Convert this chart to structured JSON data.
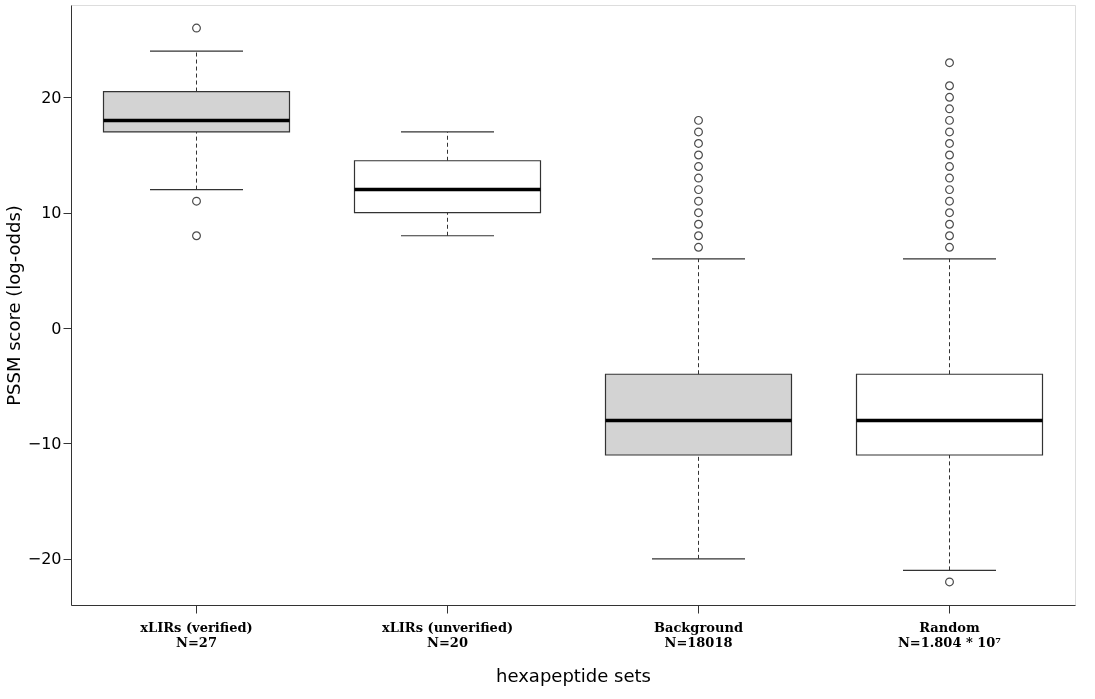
{
  "chart_data": {
    "type": "box",
    "xlabel": "hexapeptide sets",
    "ylabel": "PSSM score (log-odds)",
    "categories": [
      "xLIRs (verified)\nN=27",
      "xLIRs (unverified)\nN=20",
      "Background\nN=18018",
      "Random\nN=1.804 * 10⁷"
    ],
    "colors": [
      "#d3d3d3",
      "#ffffff",
      "#d3d3d3",
      "#ffffff"
    ],
    "boxes": [
      {
        "low": 12,
        "q1": 17,
        "median": 18,
        "q3": 20.5,
        "high": 24,
        "outliers": [
          26,
          11,
          8
        ]
      },
      {
        "low": 8,
        "q1": 10,
        "median": 12,
        "q3": 14.5,
        "high": 17
      },
      {
        "low": -20,
        "q1": -11,
        "median": -8,
        "q3": -4,
        "high": 6,
        "outliers": [
          7,
          8,
          9,
          10,
          11,
          12,
          13,
          14,
          15,
          16,
          17,
          18
        ]
      },
      {
        "low": -21,
        "q1": -11,
        "median": -8,
        "q3": -4,
        "high": 6,
        "outliers": [
          7,
          8,
          9,
          10,
          11,
          12,
          13,
          14,
          15,
          16,
          17,
          18,
          19,
          20,
          21,
          23,
          -22
        ]
      }
    ],
    "ylim": [
      -24,
      28
    ],
    "yticks": [
      -20,
      -10,
      0,
      10,
      20
    ],
    "grid": false
  }
}
